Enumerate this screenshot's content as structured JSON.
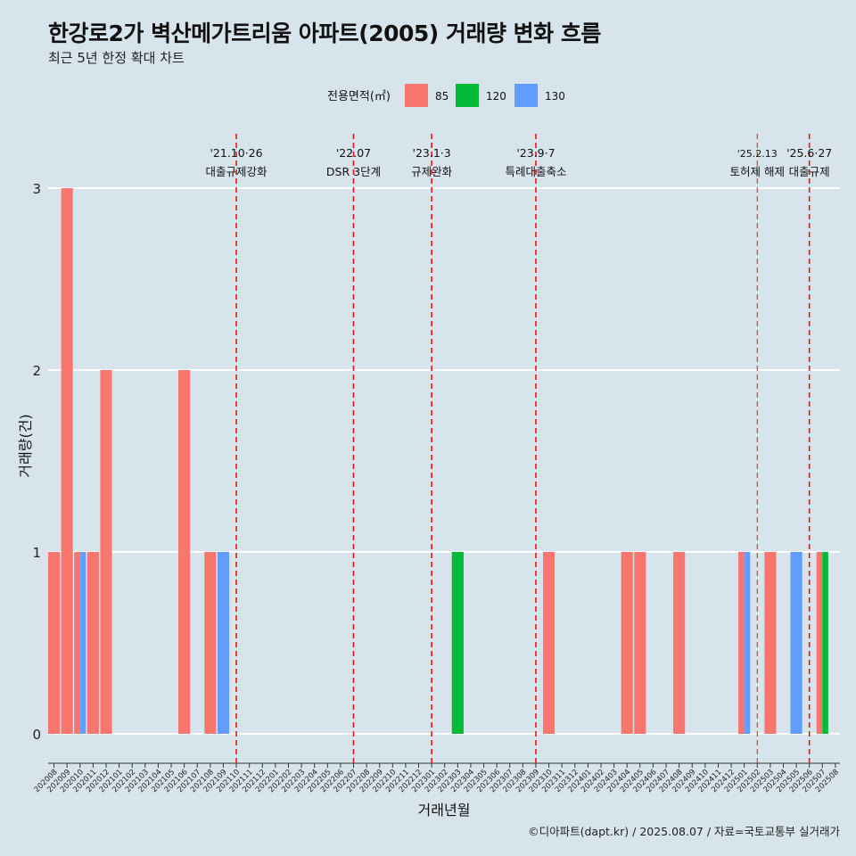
{
  "title": "한강로2가 벽산메가트리움 아파트(2005) 거래량 변화 흐름",
  "subtitle": "최근 5년 한정 확대 차트",
  "caption": "©디아파트(dapt.kr) / 2025.08.07 / 자료=국토교통부 실거래가",
  "chart_data": {
    "type": "bar",
    "xlabel": "거래년월",
    "ylabel": "거래량(건)",
    "ylim": [
      0,
      3
    ],
    "y_ticks": [
      0,
      1,
      2,
      3
    ],
    "grid": true,
    "legend": {
      "title": "전용면적(㎡)",
      "position": "top"
    },
    "categories": [
      "202008",
      "202009",
      "202010",
      "202011",
      "202012",
      "202101",
      "202102",
      "202103",
      "202104",
      "202105",
      "202106",
      "202107",
      "202108",
      "202109",
      "202110",
      "202111",
      "202112",
      "202201",
      "202202",
      "202203",
      "202204",
      "202205",
      "202206",
      "202207",
      "202208",
      "202209",
      "202210",
      "202211",
      "202212",
      "202301",
      "202302",
      "202303",
      "202304",
      "202305",
      "202306",
      "202307",
      "202308",
      "202309",
      "202310",
      "202311",
      "202312",
      "202401",
      "202402",
      "202403",
      "202404",
      "202405",
      "202406",
      "202407",
      "202408",
      "202409",
      "202410",
      "202411",
      "202412",
      "202501",
      "202502",
      "202503",
      "202504",
      "202505",
      "202506",
      "202507",
      "202508"
    ],
    "series": [
      {
        "name": "85",
        "color": "#F8766D",
        "values": [
          1,
          3,
          1,
          1,
          2,
          0,
          0,
          0,
          0,
          0,
          2,
          0,
          1,
          0,
          0,
          0,
          0,
          0,
          0,
          0,
          0,
          0,
          0,
          0,
          0,
          0,
          0,
          0,
          0,
          0,
          0,
          0,
          0,
          0,
          0,
          0,
          0,
          0,
          1,
          0,
          0,
          0,
          0,
          0,
          1,
          1,
          0,
          0,
          1,
          0,
          0,
          0,
          0,
          1,
          0,
          1,
          0,
          0,
          0,
          1,
          0
        ]
      },
      {
        "name": "120",
        "color": "#00BA38",
        "values": [
          0,
          0,
          0,
          0,
          0,
          0,
          0,
          0,
          0,
          0,
          0,
          0,
          0,
          0,
          0,
          0,
          0,
          0,
          0,
          0,
          0,
          0,
          0,
          0,
          0,
          0,
          0,
          0,
          0,
          0,
          0,
          1,
          0,
          0,
          0,
          0,
          0,
          0,
          0,
          0,
          0,
          0,
          0,
          0,
          0,
          0,
          0,
          0,
          0,
          0,
          0,
          0,
          0,
          0,
          0,
          0,
          0,
          0,
          0,
          1,
          0
        ]
      },
      {
        "name": "130",
        "color": "#619CFF",
        "values": [
          0,
          0,
          1,
          0,
          0,
          0,
          0,
          0,
          0,
          0,
          0,
          0,
          0,
          1,
          0,
          0,
          0,
          0,
          0,
          0,
          0,
          0,
          0,
          0,
          0,
          0,
          0,
          0,
          0,
          0,
          0,
          0,
          0,
          0,
          0,
          0,
          0,
          0,
          0,
          0,
          0,
          0,
          0,
          0,
          0,
          0,
          0,
          0,
          0,
          0,
          0,
          0,
          0,
          1,
          0,
          0,
          0,
          1,
          0,
          0,
          0
        ]
      }
    ],
    "annotations": [
      {
        "month": "202110",
        "date": "'21.10·26",
        "label": "대출규제강화"
      },
      {
        "month": "202207",
        "date": "'22.07",
        "label": "DSR 3단계"
      },
      {
        "month": "202301",
        "date": "'23.1·3",
        "label": "규제완화"
      },
      {
        "month": "202309",
        "date": "'23.9·7",
        "label": "특례대출축소"
      },
      {
        "month": "202502",
        "date": "'25.2.13",
        "label": "토허제 해제"
      },
      {
        "month": "202506",
        "date": "'25.6·27",
        "label": "대출규제"
      }
    ]
  }
}
